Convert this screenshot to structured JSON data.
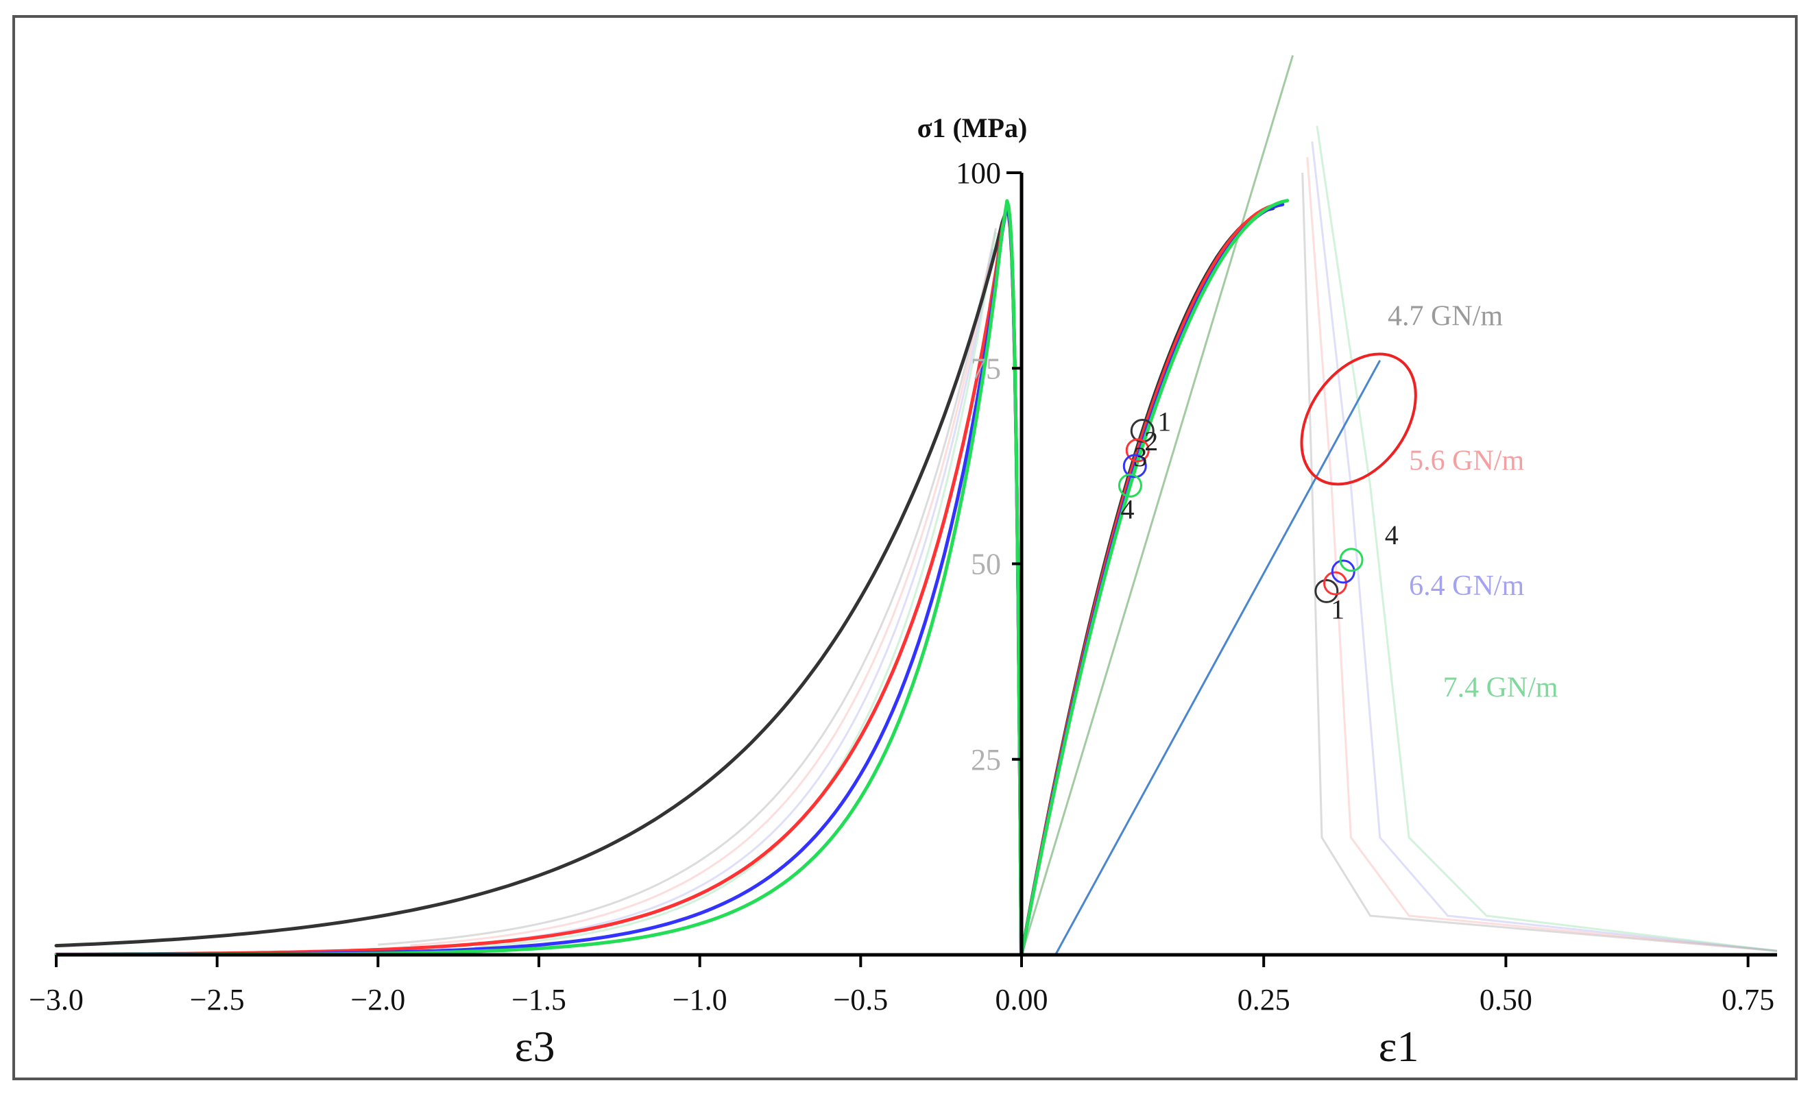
{
  "chart_data": {
    "type": "line",
    "title": "",
    "ylabel": "σ1 (MPa)",
    "xlabels": {
      "left": "ε3",
      "right": "ε1"
    },
    "left_xlim": [
      -3.0,
      0.0
    ],
    "right_xlim": [
      0.0,
      0.78
    ],
    "ylim": [
      0,
      100
    ],
    "x_ticks": [
      {
        "value": -3.0,
        "label": "−3.0"
      },
      {
        "value": -2.5,
        "label": "−2.5"
      },
      {
        "value": -2.0,
        "label": "−2.0"
      },
      {
        "value": -1.5,
        "label": "−1.5"
      },
      {
        "value": -1.0,
        "label": "−1.0"
      },
      {
        "value": -0.5,
        "label": "−0.5"
      },
      {
        "value": 0.0,
        "label": "0.00"
      },
      {
        "value": 0.25,
        "label": "0.25"
      },
      {
        "value": 0.5,
        "label": "0.50"
      },
      {
        "value": 0.75,
        "label": "0.75"
      }
    ],
    "y_ticks": [
      {
        "value": 25,
        "label": "25"
      },
      {
        "value": 50,
        "label": "50"
      },
      {
        "value": 75,
        "label": "75"
      },
      {
        "value": 100,
        "label": "100"
      }
    ],
    "series": [
      {
        "name": "1",
        "color": "#333333",
        "peak": 95.5,
        "eps1_at_peak": 0.265,
        "eps3_at_peak": -0.05,
        "pre_peak_marker": 67,
        "post_peak_marker": 46.5
      },
      {
        "name": "2",
        "color": "#ff3333",
        "peak": 96.0,
        "eps1_at_peak": 0.27,
        "eps3_at_peak": -0.05,
        "pre_peak_marker": 64.5,
        "post_peak_marker": 47.5
      },
      {
        "name": "3",
        "color": "#3333ff",
        "peak": 96.0,
        "eps1_at_peak": 0.275,
        "eps3_at_peak": -0.05,
        "pre_peak_marker": 62.5,
        "post_peak_marker": 49
      },
      {
        "name": "4",
        "color": "#22dd55",
        "peak": 96.5,
        "eps1_at_peak": 0.28,
        "eps3_at_peak": -0.05,
        "pre_peak_marker": 60,
        "post_peak_marker": 50.5
      }
    ],
    "stiffness_labels": [
      {
        "text": "4.7 GN/m",
        "color": "#9a9a9a"
      },
      {
        "text": "5.6 GN/m",
        "color": "#f5a0a0"
      },
      {
        "text": "6.4 GN/m",
        "color": "#a3a3f2"
      },
      {
        "text": "7.4 GN/m",
        "color": "#7fd99a"
      }
    ],
    "marker_labels": {
      "pre_peak": [
        "1",
        "2",
        "3",
        "4"
      ],
      "post_peak": [
        "1",
        "4"
      ]
    },
    "grid": false
  }
}
